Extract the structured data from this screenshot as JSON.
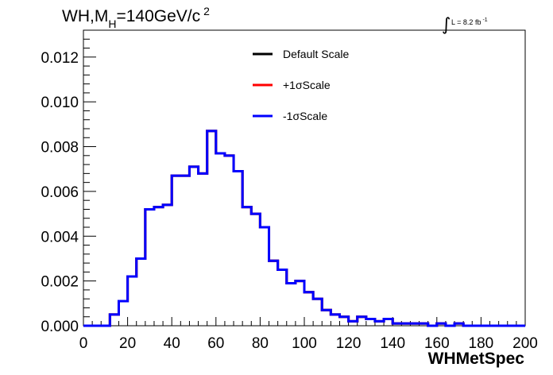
{
  "chart_data": {
    "type": "line",
    "title_parts": {
      "main": "WH,M",
      "sub": "H",
      "rest": "=140GeV/c",
      "sup": "2"
    },
    "lumi": {
      "integral": "∫",
      "text": "L = 8.2 fb",
      "sup": "-1"
    },
    "xlabel": "WHMetSpec",
    "ylabel": "",
    "xlim": [
      0,
      200
    ],
    "ylim": [
      0,
      0.0132
    ],
    "x_ticks": [
      0,
      20,
      40,
      60,
      80,
      100,
      120,
      140,
      160,
      180,
      200
    ],
    "x_tick_labels": [
      "0",
      "20",
      "40",
      "60",
      "80",
      "100",
      "120",
      "140",
      "160",
      "180",
      "200"
    ],
    "y_ticks": [
      0,
      0.002,
      0.004,
      0.006,
      0.008,
      0.01,
      0.012
    ],
    "y_tick_labels": [
      "0.000",
      "0.002",
      "0.004",
      "0.006",
      "0.008",
      "0.010",
      "0.012"
    ],
    "bin_edges": [
      0,
      4,
      8,
      12,
      16,
      20,
      24,
      28,
      32,
      36,
      40,
      44,
      48,
      52,
      56,
      60,
      64,
      68,
      72,
      76,
      80,
      84,
      88,
      92,
      96,
      100,
      104,
      108,
      112,
      116,
      120,
      124,
      128,
      132,
      136,
      140,
      144,
      148,
      152,
      156,
      160,
      164,
      168,
      172,
      176,
      180,
      184,
      188,
      192,
      196,
      200
    ],
    "series": [
      {
        "name": "Default Scale",
        "color": "#000000",
        "values": [
          0,
          0,
          0,
          0.0005,
          0.0011,
          0.0022,
          0.003,
          0.0052,
          0.0053,
          0.0054,
          0.0067,
          0.0067,
          0.0071,
          0.0068,
          0.0087,
          0.0077,
          0.0076,
          0.0069,
          0.0053,
          0.005,
          0.0044,
          0.0029,
          0.0025,
          0.0019,
          0.002,
          0.0015,
          0.0012,
          0.0007,
          0.0005,
          0.0004,
          0.0002,
          0.0004,
          0.0003,
          0.0002,
          0.0003,
          0.0001,
          0.0001,
          0.0001,
          0.0001,
          0.0,
          0.0001,
          0.0,
          0.0001,
          0.0,
          0.0,
          0.0,
          0.0,
          0.0,
          0.0,
          0.0
        ]
      },
      {
        "name": "+1σScale",
        "color": "#ff0000",
        "values": [
          0,
          0,
          0,
          0.0005,
          0.0011,
          0.0022,
          0.003,
          0.0052,
          0.0053,
          0.0054,
          0.0067,
          0.0067,
          0.0071,
          0.0068,
          0.0087,
          0.0077,
          0.0076,
          0.0069,
          0.0053,
          0.005,
          0.0044,
          0.0029,
          0.0025,
          0.0019,
          0.002,
          0.0015,
          0.0012,
          0.0007,
          0.0005,
          0.0004,
          0.0002,
          0.0004,
          0.0003,
          0.0002,
          0.0003,
          0.0001,
          0.0001,
          0.0001,
          0.0001,
          0.0,
          0.0001,
          0.0,
          0.0001,
          0.0,
          0.0,
          0.0,
          0.0,
          0.0,
          0.0,
          0.0
        ]
      },
      {
        "name": "-1σScale",
        "color": "#0000ff",
        "values": [
          0,
          0,
          0,
          0.0005,
          0.0011,
          0.0022,
          0.003,
          0.0052,
          0.0053,
          0.0054,
          0.0067,
          0.0067,
          0.0071,
          0.0068,
          0.0087,
          0.0077,
          0.0076,
          0.0069,
          0.0053,
          0.005,
          0.0044,
          0.0029,
          0.0025,
          0.0019,
          0.002,
          0.0015,
          0.0012,
          0.0007,
          0.0005,
          0.0004,
          0.0002,
          0.0004,
          0.0003,
          0.0002,
          0.0003,
          0.0001,
          0.0001,
          0.0001,
          0.0001,
          0.0,
          0.0001,
          0.0,
          0.0001,
          0.0,
          0.0,
          0.0,
          0.0,
          0.0,
          0.0,
          0.0
        ]
      }
    ],
    "legend_position": "top-center",
    "grid": false
  }
}
